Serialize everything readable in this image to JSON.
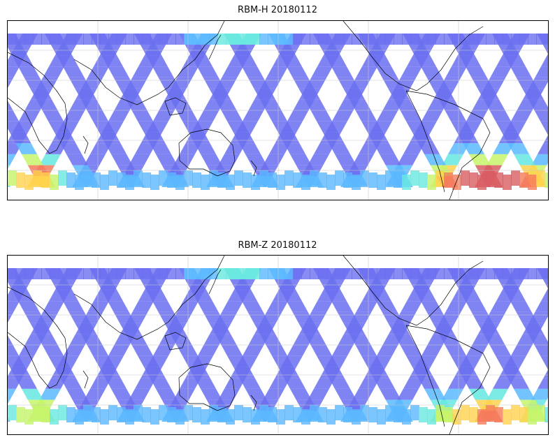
{
  "panels": [
    {
      "id": "top",
      "title": "RBM-H 20180112",
      "hot_spots": "south-atlantic-strong"
    },
    {
      "id": "bottom",
      "title": "RBM-Z 20180112",
      "hot_spots": "south-atlantic-moderate"
    }
  ],
  "colors": {
    "low": "#6a6ff0",
    "mid_low": "#5ab8ff",
    "mid": "#66e8e0",
    "mid_high": "#c6f46a",
    "high": "#ffd24d",
    "very_high": "#f57a5a",
    "max": "#d85c62",
    "gridline": "#c8c8c8",
    "coast": "#000000"
  }
}
